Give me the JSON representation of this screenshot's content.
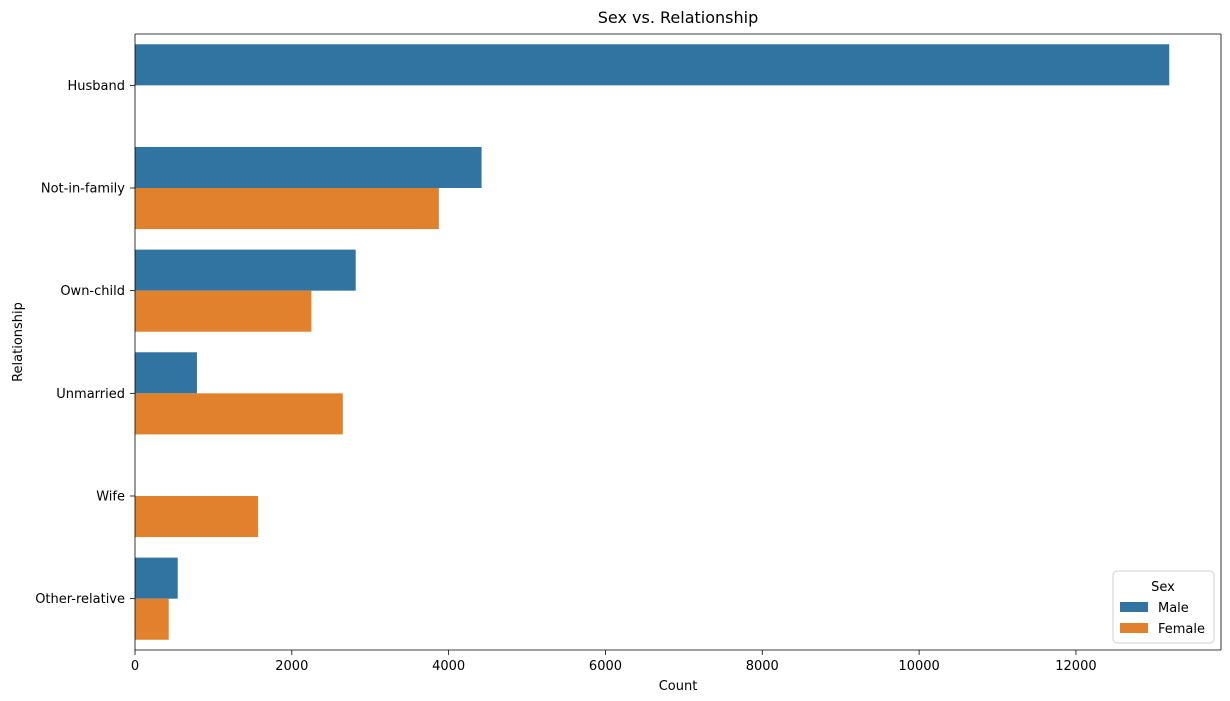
{
  "chart_data": {
    "type": "bar",
    "orientation": "horizontal",
    "title": "Sex vs. Relationship",
    "xlabel": "Count",
    "ylabel": "Relationship",
    "categories": [
      "Husband",
      "Not-in-family",
      "Own-child",
      "Unmarried",
      "Wife",
      "Other-relative"
    ],
    "series": [
      {
        "name": "Male",
        "color": "#3274a1",
        "values": [
          13190,
          4420,
          2815,
          790,
          0,
          545
        ]
      },
      {
        "name": "Female",
        "color": "#e1812c",
        "values": [
          0,
          3875,
          2250,
          2650,
          1570,
          430
        ]
      }
    ],
    "xlim": [
      0,
      13850
    ],
    "xticks": [
      0,
      2000,
      4000,
      6000,
      8000,
      10000,
      12000
    ],
    "grid": false,
    "legend": {
      "title": "Sex",
      "placement": "lower-right"
    }
  }
}
